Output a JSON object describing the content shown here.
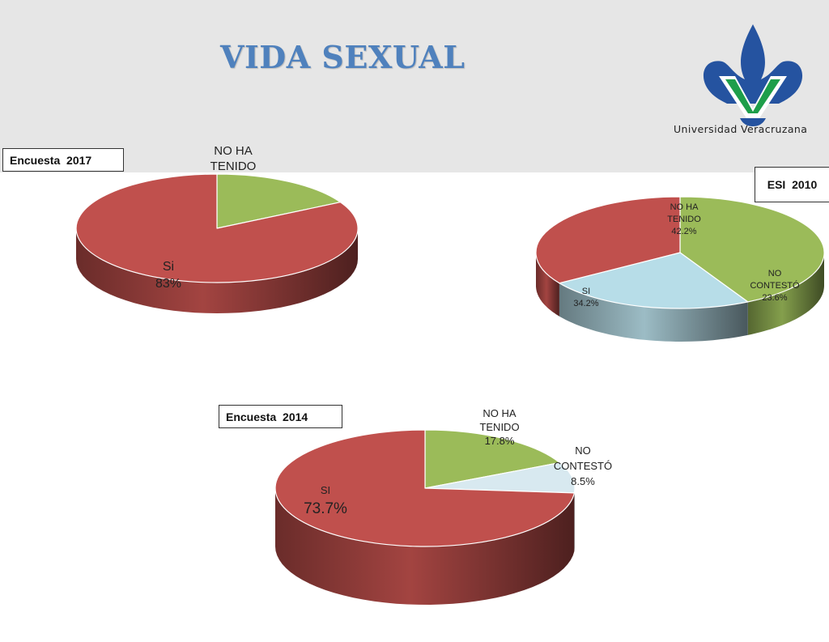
{
  "header": {
    "title": "VIDA SEXUAL",
    "logo_text": "Universidad Veracruzana",
    "band_color": "#e6e6e6",
    "title_color": "#4f81bd"
  },
  "colors": {
    "si": "#c0504d",
    "no_ha_tenido": "#9bbb59",
    "no_contesto_2010": "#b7dde8",
    "no_contesto_2014": "#d8e9f0",
    "logo_blue": "#2553a0",
    "logo_green": "#1e9e4a"
  },
  "chart_data": [
    {
      "type": "pie",
      "title": "Encuesta  2017",
      "slices": [
        {
          "label": "NO HA TENIDO",
          "value": 17,
          "display": [
            "NO HA",
            "TENIDO"
          ]
        },
        {
          "label": "Si",
          "value": 83,
          "display": [
            "Si",
            "83%"
          ]
        }
      ]
    },
    {
      "type": "pie",
      "title": "ESI  2010",
      "slices": [
        {
          "label": "NO HA TENIDO",
          "value": 42.2,
          "display": [
            "NO HA",
            "TENIDO",
            "42.2%"
          ]
        },
        {
          "label": "NO CONTESTÓ",
          "value": 23.6,
          "display": [
            "NO",
            "CONTESTÓ",
            "23.6%"
          ]
        },
        {
          "label": "SI",
          "value": 34.2,
          "display": [
            "SI",
            "34.2%"
          ]
        }
      ]
    },
    {
      "type": "pie",
      "title": "Encuesta  2014",
      "slices": [
        {
          "label": "NO HA TENIDO",
          "value": 17.8,
          "display": [
            "NO HA",
            "TENIDO",
            "17.8%"
          ]
        },
        {
          "label": "NO CONTESTÓ",
          "value": 8.5,
          "display": [
            "NO",
            "CONTESTÓ",
            "8.5%"
          ]
        },
        {
          "label": "SI",
          "value": 73.7,
          "display": [
            "SI",
            "73.7%"
          ]
        }
      ]
    }
  ]
}
